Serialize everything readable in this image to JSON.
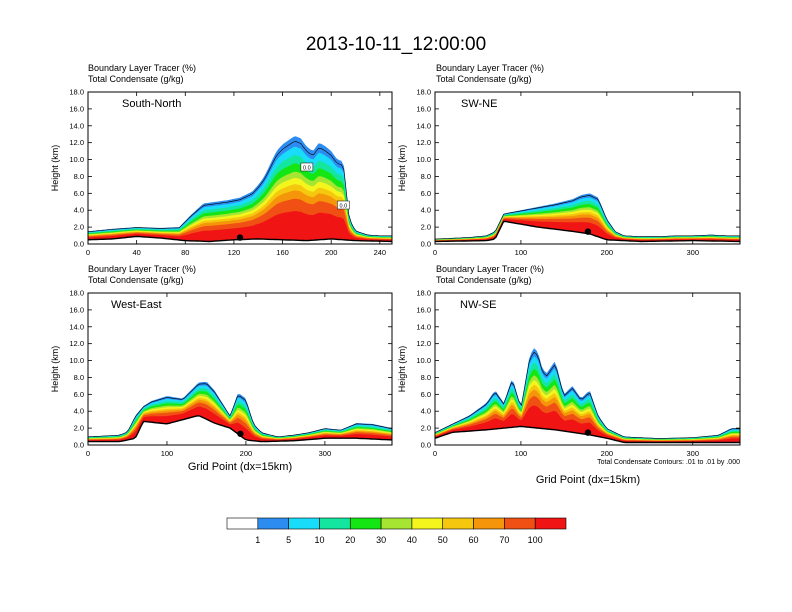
{
  "figure": {
    "title": "2013-10-11_12:00:00",
    "footnote": "Total Condensate Contours: .01 to .01 by .000"
  },
  "colorbar": {
    "levels": [
      1,
      5,
      10,
      20,
      30,
      40,
      50,
      60,
      70,
      100
    ],
    "labels": [
      "1",
      "5",
      "10",
      "20",
      "30",
      "40",
      "50",
      "60",
      "70",
      "100"
    ],
    "colors": [
      "#ffffff",
      "#2d8cf0",
      "#19dcfa",
      "#14e6a0",
      "#14e614",
      "#a6e632",
      "#f5f51e",
      "#f5c80f",
      "#f5960a",
      "#f05014",
      "#f01414"
    ]
  },
  "panels": [
    {
      "id": "south-north",
      "header_line1": "Boundary Layer Tracer   (%)",
      "header_line2": "Total Condensate   (g/kg)",
      "name": "South-North",
      "ylabel": "Height (km)",
      "xlabel": "",
      "x_max": 250,
      "x_ticks": [
        0,
        40,
        80,
        120,
        160,
        200,
        240
      ],
      "y_ticks": [
        "0.0",
        "2.0",
        "4.0",
        "6.0",
        "8.0",
        "10.0",
        "12.0",
        "14.0",
        "16.0",
        "18.0"
      ],
      "marker_x": 125,
      "contour_labels": [
        {
          "text": "0.0",
          "x": 180,
          "y": 9.0
        },
        {
          "text": "0.0",
          "x": 210,
          "y": 4.5
        }
      ]
    },
    {
      "id": "sw-ne",
      "header_line1": "Boundary Layer Tracer   (%)",
      "header_line2": "Total Condensate   (g/kg)",
      "name": "SW-NE",
      "ylabel": "Height (km)",
      "xlabel": "",
      "x_max": 355,
      "x_ticks": [
        0,
        100,
        200,
        300
      ],
      "y_ticks": [
        "0.0",
        "2.0",
        "4.0",
        "6.0",
        "8.0",
        "10.0",
        "12.0",
        "14.0",
        "16.0",
        "18.0"
      ],
      "marker_x": 178,
      "contour_labels": []
    },
    {
      "id": "west-east",
      "header_line1": "Boundary Layer Tracer   (%)",
      "header_line2": "Total Condensate   (g/kg)",
      "name": "West-East",
      "ylabel": "Height (km)",
      "xlabel": "Grid Point (dx=15km)",
      "x_max": 385,
      "x_ticks": [
        0,
        100,
        200,
        300
      ],
      "y_ticks": [
        "0.0",
        "2.0",
        "4.0",
        "6.0",
        "8.0",
        "10.0",
        "12.0",
        "14.0",
        "16.0",
        "18.0"
      ],
      "marker_x": 193,
      "contour_labels": []
    },
    {
      "id": "nw-se",
      "header_line1": "Boundary Layer Tracer   (%)",
      "header_line2": "Total Condensate   (g/kg)",
      "name": "NW-SE",
      "ylabel": "Height (km)",
      "xlabel": "Grid Point (dx=15km)",
      "x_max": 355,
      "x_ticks": [
        0,
        100,
        200,
        300
      ],
      "y_ticks": [
        "0.0",
        "2.0",
        "4.0",
        "6.0",
        "8.0",
        "10.0",
        "12.0",
        "14.0",
        "16.0",
        "18.0"
      ],
      "marker_x": 178,
      "contour_labels": []
    }
  ],
  "chart_data": [
    {
      "type": "area",
      "name": "South-North",
      "xlabel": "",
      "ylabel": "Height (km)",
      "xlim": [
        0,
        250
      ],
      "ylim": [
        0,
        18
      ],
      "plume_top_km": {
        "x": [
          0,
          20,
          40,
          60,
          75,
          85,
          95,
          105,
          115,
          125,
          135,
          140,
          145,
          150,
          155,
          160,
          165,
          170,
          175,
          180,
          185,
          190,
          195,
          200,
          205,
          210,
          215,
          220,
          230,
          240,
          250
        ],
        "top": [
          1.5,
          1.8,
          2.0,
          1.9,
          2.0,
          3.5,
          4.8,
          5.0,
          5.2,
          5.5,
          6.2,
          7.0,
          8.0,
          9.5,
          11.0,
          11.8,
          12.3,
          12.8,
          12.5,
          11.5,
          11.0,
          12.0,
          11.6,
          11.0,
          10.0,
          9.8,
          3.0,
          1.6,
          1.1,
          1.0,
          1.0
        ]
      },
      "terrain_km": {
        "x": [
          0,
          20,
          40,
          60,
          80,
          100,
          120,
          140,
          160,
          180,
          200,
          220,
          250
        ],
        "top": [
          0.5,
          0.6,
          0.9,
          0.7,
          0.4,
          0.3,
          0.5,
          0.6,
          0.5,
          0.4,
          0.6,
          0.4,
          0.3
        ]
      }
    },
    {
      "type": "area",
      "name": "SW-NE",
      "xlabel": "",
      "ylabel": "Height (km)",
      "xlim": [
        0,
        355
      ],
      "ylim": [
        0,
        18
      ],
      "plume_top_km": {
        "x": [
          0,
          20,
          40,
          60,
          70,
          80,
          90,
          100,
          120,
          140,
          160,
          170,
          180,
          190,
          200,
          210,
          220,
          240,
          260,
          280,
          300,
          320,
          340,
          355
        ],
        "top": [
          0.6,
          0.7,
          0.8,
          1.0,
          1.5,
          3.6,
          3.8,
          4.0,
          4.4,
          4.8,
          5.3,
          5.8,
          6.0,
          5.5,
          3.0,
          1.5,
          1.0,
          0.9,
          0.9,
          1.0,
          1.0,
          1.1,
          1.0,
          1.0
        ]
      },
      "terrain_km": {
        "x": [
          0,
          60,
          70,
          80,
          120,
          160,
          180,
          200,
          240,
          300,
          355
        ],
        "top": [
          0.3,
          0.4,
          0.6,
          2.7,
          2.0,
          1.5,
          1.2,
          0.5,
          0.3,
          0.4,
          0.3
        ]
      }
    },
    {
      "type": "area",
      "name": "West-East",
      "xlabel": "Grid Point (dx=15km)",
      "ylabel": "Height (km)",
      "xlim": [
        0,
        385
      ],
      "ylim": [
        0,
        18
      ],
      "plume_top_km": {
        "x": [
          0,
          20,
          40,
          50,
          60,
          70,
          80,
          100,
          120,
          140,
          150,
          160,
          170,
          180,
          190,
          200,
          210,
          220,
          240,
          260,
          280,
          300,
          320,
          340,
          360,
          385
        ],
        "top": [
          1.0,
          1.1,
          1.2,
          1.6,
          3.5,
          4.6,
          5.2,
          5.8,
          5.5,
          7.4,
          7.5,
          6.5,
          5.0,
          3.5,
          6.2,
          5.5,
          2.5,
          1.5,
          1.0,
          1.2,
          1.5,
          2.0,
          1.8,
          2.6,
          2.5,
          2.0
        ]
      },
      "terrain_km": {
        "x": [
          0,
          40,
          60,
          70,
          100,
          140,
          160,
          180,
          200,
          220,
          260,
          300,
          340,
          385
        ],
        "top": [
          0.4,
          0.4,
          0.8,
          2.8,
          2.5,
          3.5,
          2.6,
          2.0,
          0.6,
          0.4,
          0.5,
          0.8,
          0.8,
          0.6
        ]
      }
    },
    {
      "type": "area",
      "name": "NW-SE",
      "xlabel": "Grid Point (dx=15km)",
      "ylabel": "Height (km)",
      "xlim": [
        0,
        355
      ],
      "ylim": [
        0,
        18
      ],
      "plume_top_km": {
        "x": [
          0,
          20,
          40,
          60,
          70,
          80,
          90,
          100,
          110,
          115,
          120,
          125,
          130,
          140,
          150,
          160,
          170,
          180,
          190,
          200,
          220,
          260,
          300,
          330,
          345,
          355
        ],
        "top": [
          1.5,
          2.5,
          3.5,
          5.0,
          6.5,
          5.0,
          8.0,
          4.5,
          10.5,
          11.5,
          11.0,
          9.0,
          8.5,
          10.0,
          6.0,
          7.0,
          5.5,
          6.5,
          3.5,
          2.0,
          1.0,
          0.8,
          0.9,
          1.2,
          2.0,
          2.0
        ]
      },
      "terrain_km": {
        "x": [
          0,
          20,
          60,
          80,
          100,
          120,
          140,
          160,
          180,
          200,
          220,
          260,
          300,
          355
        ],
        "top": [
          0.8,
          1.5,
          1.8,
          2.0,
          2.2,
          2.0,
          1.8,
          1.5,
          1.2,
          0.8,
          0.3,
          0.3,
          0.3,
          0.3
        ]
      }
    }
  ]
}
